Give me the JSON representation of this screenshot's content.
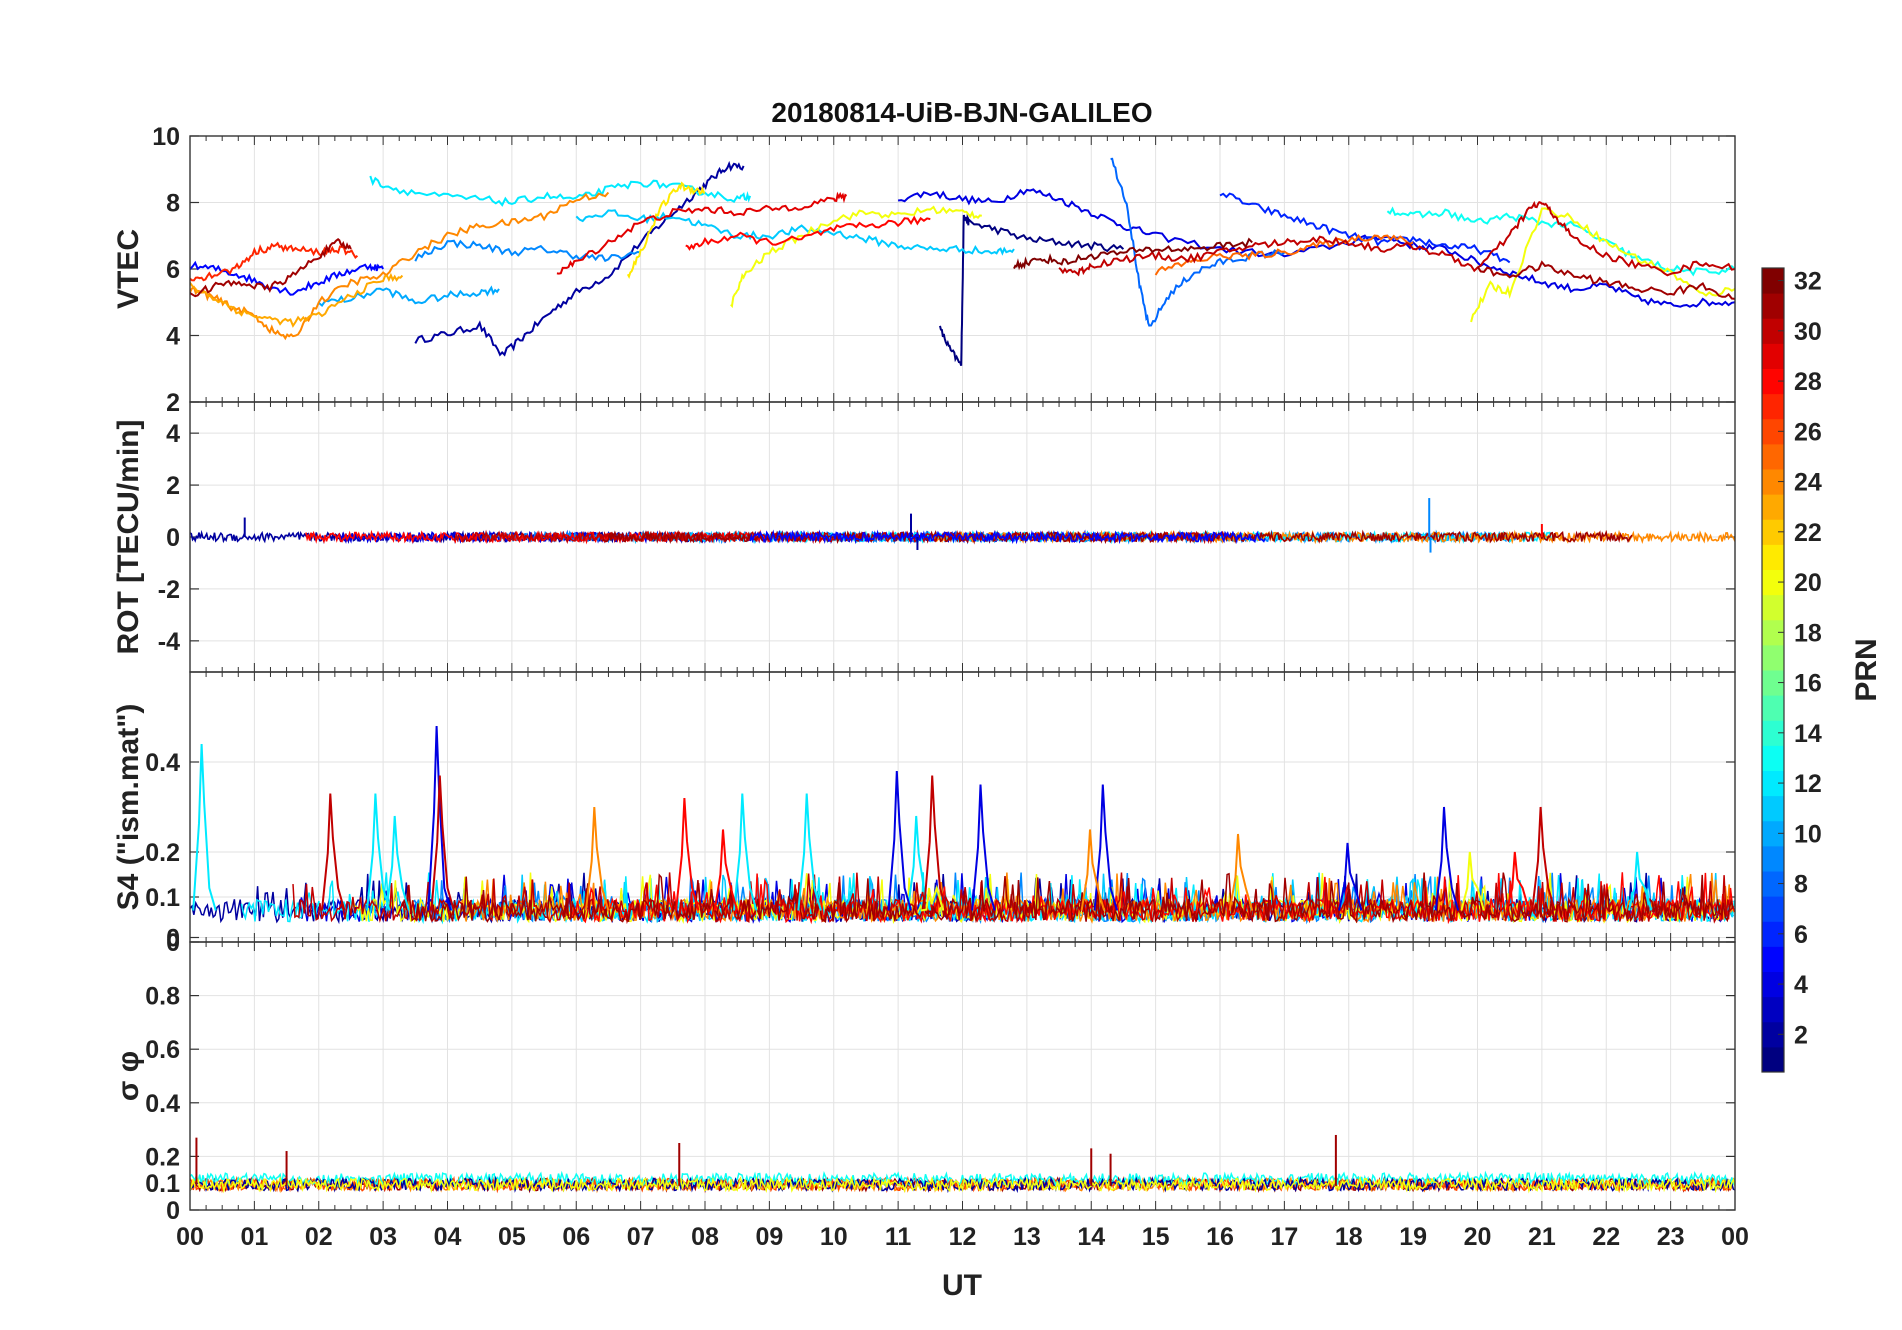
{
  "chart_data": {
    "type": "line",
    "title": "20180814-UiB-BJN-GALILEO",
    "xlabel": "UT",
    "x_tick_labels": [
      "00",
      "01",
      "02",
      "03",
      "04",
      "05",
      "06",
      "07",
      "08",
      "09",
      "10",
      "11",
      "12",
      "13",
      "14",
      "15",
      "16",
      "17",
      "18",
      "19",
      "20",
      "21",
      "22",
      "23",
      "00"
    ],
    "xlim": [
      0,
      24
    ],
    "grid": true,
    "colorbar": {
      "label": "PRN",
      "range": [
        1,
        32
      ],
      "ticks": [
        "2",
        "4",
        "6",
        "8",
        "10",
        "12",
        "14",
        "16",
        "18",
        "20",
        "22",
        "24",
        "26",
        "28",
        "30",
        "32"
      ],
      "colormap": "jet"
    },
    "panels": [
      {
        "ylabel": "VTEC",
        "ylim": [
          2,
          10
        ],
        "y_tick_labels": [
          "2",
          "4",
          "6",
          "8",
          "10"
        ],
        "series": [
          {
            "prn": 2,
            "x": [
              3.5,
              4.0,
              4.5,
              4.85,
              5.2,
              5.6,
              6.0,
              6.5,
              7.0,
              7.4,
              7.8,
              8.1,
              8.35,
              8.6
            ],
            "y": [
              3.85,
              4.05,
              4.3,
              3.4,
              4.0,
              4.7,
              5.3,
              5.8,
              6.8,
              7.5,
              8.2,
              8.7,
              9.1,
              9.1
            ]
          },
          {
            "prn": 1,
            "x": [
              11.65,
              11.8,
              11.98,
              12.02,
              12.05,
              12.1,
              12.5,
              13.0,
              13.5,
              14.0,
              14.5
            ],
            "y": [
              4.2,
              3.6,
              3.1,
              7.6,
              7.5,
              7.4,
              7.2,
              6.9,
              6.8,
              6.7,
              6.6
            ]
          },
          {
            "prn": 4,
            "x": [
              11.0,
              11.5,
              12.0,
              12.5,
              13.0,
              13.5,
              14.0,
              14.5,
              15.0,
              16.0,
              17.0,
              18.0,
              18.5,
              19.0,
              19.5,
              20.0,
              20.5,
              21.0,
              21.5,
              22.0,
              22.5,
              23.0,
              23.5,
              24.0
            ],
            "y": [
              8.1,
              8.3,
              8.1,
              8.0,
              8.4,
              8.1,
              7.7,
              7.3,
              7.0,
              6.6,
              6.4,
              6.8,
              7.0,
              6.7,
              6.6,
              6.2,
              5.9,
              5.6,
              5.4,
              5.5,
              5.1,
              4.9,
              5.0,
              5.0
            ]
          },
          {
            "prn": 8,
            "x": [
              14.3,
              14.55,
              14.75,
              14.9,
              15.2,
              15.6,
              16.0,
              16.5,
              17.0
            ],
            "y": [
              9.4,
              8.0,
              5.5,
              4.2,
              5.2,
              5.9,
              6.2,
              6.4,
              6.5
            ]
          },
          {
            "prn": 6,
            "x": [
              16.0,
              16.5,
              17.0,
              17.5,
              18.0,
              18.5,
              19.0,
              19.5,
              20.0,
              20.5
            ],
            "y": [
              8.3,
              7.9,
              7.6,
              7.3,
              7.0,
              6.8,
              6.9,
              6.7,
              6.6,
              6.2
            ]
          },
          {
            "prn": 5,
            "x": [
              0.0,
              0.4,
              0.8,
              1.2,
              1.6,
              2.0,
              2.4,
              2.8,
              3.0
            ],
            "y": [
              6.1,
              6.0,
              5.8,
              5.5,
              5.3,
              5.6,
              5.9,
              6.1,
              6.0
            ]
          },
          {
            "prn": 9,
            "x": [
              3.5,
              4.0,
              4.5,
              5.0,
              5.5,
              6.0,
              6.5,
              7.0
            ],
            "y": [
              6.3,
              6.8,
              6.7,
              6.5,
              6.6,
              6.4,
              6.3,
              6.5
            ]
          },
          {
            "prn": 10,
            "x": [
              2.0,
              2.5,
              3.0,
              3.5,
              4.0,
              4.5,
              4.8
            ],
            "y": [
              5.0,
              5.1,
              5.4,
              5.0,
              5.2,
              5.3,
              5.4
            ]
          },
          {
            "prn": 11,
            "x": [
              6.0,
              6.5,
              7.0,
              7.5,
              8.0,
              8.5,
              9.0,
              9.5,
              10.0,
              10.5,
              11.0,
              11.5,
              12.0,
              12.5,
              12.8
            ],
            "y": [
              7.5,
              7.7,
              7.5,
              7.6,
              7.3,
              7.0,
              7.0,
              7.2,
              7.1,
              6.9,
              6.7,
              6.6,
              6.6,
              6.5,
              6.6
            ]
          },
          {
            "prn": 12,
            "x": [
              2.8,
              3.2,
              3.8,
              4.5,
              5.0,
              5.5,
              6.0,
              6.5,
              7.0,
              7.5,
              8.0,
              8.5,
              8.7
            ],
            "y": [
              8.7,
              8.4,
              8.2,
              8.1,
              8.0,
              8.2,
              8.1,
              8.4,
              8.6,
              8.5,
              8.3,
              8.1,
              8.2
            ]
          },
          {
            "prn": 13,
            "x": [
              18.6,
              19.0,
              19.5,
              20.0,
              20.5,
              21.0,
              21.5,
              22.0,
              22.5,
              23.0,
              23.5,
              24.0
            ],
            "y": [
              7.8,
              7.6,
              7.7,
              7.4,
              7.6,
              7.4,
              7.3,
              6.8,
              6.3,
              6.0,
              5.9,
              6.0
            ]
          },
          {
            "prn": 20,
            "x": [
              8.4,
              8.6,
              9.0,
              9.5,
              10.0,
              10.5,
              11.0,
              11.5,
              12.0,
              12.3
            ],
            "y": [
              4.9,
              5.8,
              6.5,
              7.0,
              7.5,
              7.7,
              7.6,
              7.8,
              7.7,
              7.6
            ]
          },
          {
            "prn": 20,
            "x": [
              19.9,
              20.2,
              20.5,
              21.0,
              21.5,
              22.0,
              22.5,
              23.0,
              23.5,
              24.0
            ],
            "y": [
              4.5,
              5.5,
              5.3,
              7.8,
              7.5,
              6.8,
              6.3,
              5.9,
              5.2,
              5.4
            ]
          },
          {
            "prn": 21,
            "x": [
              6.8,
              7.0,
              7.3,
              7.6,
              7.8,
              8.0
            ],
            "y": [
              5.8,
              6.5,
              7.8,
              8.5,
              8.4,
              8.3
            ]
          },
          {
            "prn": 24,
            "x": [
              0.0,
              0.3,
              0.6,
              1.0,
              1.3,
              1.6,
              2.0,
              2.5,
              3.0,
              3.5,
              4.0,
              4.5,
              5.0,
              5.5,
              6.0,
              6.5
            ],
            "y": [
              5.4,
              5.2,
              4.9,
              4.6,
              4.1,
              3.9,
              5.0,
              5.6,
              5.8,
              6.5,
              7.0,
              7.3,
              7.4,
              7.6,
              8.1,
              8.3
            ]
          },
          {
            "prn": 25,
            "x": [
              15.0,
              15.5,
              16.0,
              16.5,
              17.0,
              17.5,
              18.0,
              18.5,
              19.0
            ],
            "y": [
              5.9,
              6.2,
              6.4,
              6.4,
              6.5,
              6.7,
              6.9,
              7.0,
              6.8
            ]
          },
          {
            "prn": 23,
            "x": [
              0.0,
              0.4,
              0.8,
              1.2,
              1.6,
              2.0,
              2.5,
              3.0,
              3.3
            ],
            "y": [
              5.5,
              5.1,
              4.7,
              4.5,
              4.4,
              4.6,
              5.2,
              5.7,
              5.8
            ]
          },
          {
            "prn": 28,
            "x": [
              7.7,
              8.0,
              8.5,
              9.0,
              9.5,
              10.0,
              10.5,
              11.0,
              11.5
            ],
            "y": [
              6.6,
              6.8,
              7.0,
              6.8,
              6.9,
              7.2,
              7.3,
              7.4,
              7.5
            ]
          },
          {
            "prn": 27,
            "x": [
              0.0,
              0.3,
              0.7,
              1.0,
              1.3,
              1.6,
              2.0,
              2.3,
              2.6
            ],
            "y": [
              5.7,
              5.8,
              6.0,
              6.5,
              6.7,
              6.6,
              6.5,
              6.6,
              6.4
            ]
          },
          {
            "prn": 29,
            "x": [
              5.7,
              6.0,
              6.5,
              7.0,
              7.5,
              8.0,
              8.5,
              9.0,
              9.5,
              10.0,
              10.2
            ],
            "y": [
              5.9,
              6.2,
              6.8,
              7.4,
              7.7,
              7.8,
              7.7,
              7.8,
              7.9,
              8.1,
              8.2
            ]
          },
          {
            "prn": 30,
            "x": [
              13.5,
              13.8,
              14.0,
              14.5,
              15.0,
              15.5,
              16.0,
              16.5,
              17.0,
              17.5,
              18.0,
              18.5,
              19.0,
              19.5,
              20.0,
              20.5,
              20.8,
              21.0,
              21.2,
              21.5,
              22.0,
              22.5,
              23.0,
              23.5,
              24.0
            ],
            "y": [
              6.0,
              5.9,
              6.1,
              6.3,
              6.4,
              6.3,
              6.5,
              6.7,
              6.8,
              6.9,
              6.8,
              6.6,
              6.7,
              6.4,
              6.0,
              7.0,
              7.8,
              8.0,
              7.6,
              6.9,
              6.4,
              6.1,
              5.9,
              6.2,
              6.0
            ]
          },
          {
            "prn": 31,
            "x": [
              0.0,
              0.4,
              0.8,
              1.2,
              1.6,
              2.0,
              2.3,
              2.5
            ],
            "y": [
              5.2,
              5.5,
              5.6,
              5.4,
              5.8,
              6.4,
              6.8,
              6.6
            ]
          },
          {
            "prn": 32,
            "x": [
              12.8,
              13.0,
              13.3,
              13.6,
              14.0,
              14.5,
              15.0,
              15.5,
              16.0,
              16.5
            ],
            "y": [
              6.1,
              6.2,
              6.3,
              6.2,
              6.4,
              6.5,
              6.6,
              6.6,
              6.7,
              6.8
            ]
          },
          {
            "prn": 31,
            "x": [
              20.0,
              20.5,
              21.0,
              21.5,
              22.0,
              22.5,
              23.0,
              23.5,
              24.0
            ],
            "y": [
              6.0,
              5.8,
              6.1,
              5.8,
              5.6,
              5.4,
              5.3,
              5.5,
              5.1
            ]
          }
        ]
      },
      {
        "ylabel": "ROT [TECU/min]",
        "ylim": [
          -5.2,
          5.2
        ],
        "y_tick_labels": [
          "-4",
          "-2",
          "0",
          "2",
          "4"
        ],
        "series_note": "noisy traces near 0",
        "series": [
          {
            "prn": 2,
            "spikes": [
              [
                0.85,
                0.75
              ],
              [
                11.2,
                0.9
              ],
              [
                11.3,
                -0.5
              ]
            ]
          },
          {
            "prn": 9,
            "spikes": [
              [
                19.25,
                1.5
              ],
              [
                19.27,
                -0.6
              ]
            ]
          },
          {
            "prn": 28,
            "spikes": [
              [
                21.0,
                0.5
              ]
            ]
          }
        ]
      },
      {
        "ylabel": "S4 (\"ism.mat\")",
        "ylim": [
          0,
          0.6
        ],
        "y_tick_labels": [
          "0",
          "0",
          "0.1",
          "0.2",
          "0.4"
        ],
        "series": [
          {
            "prn": 12,
            "peaks": [
              [
                0.2,
                0.44
              ],
              [
                2.9,
                0.33
              ],
              [
                3.2,
                0.28
              ],
              [
                8.6,
                0.33
              ],
              [
                9.6,
                0.33
              ],
              [
                11.3,
                0.28
              ],
              [
                22.5,
                0.2
              ]
            ]
          },
          {
            "prn": 4,
            "peaks": [
              [
                3.85,
                0.48
              ],
              [
                11.0,
                0.38
              ],
              [
                12.3,
                0.35
              ],
              [
                14.2,
                0.35
              ],
              [
                18.0,
                0.22
              ],
              [
                19.5,
                0.3
              ]
            ]
          },
          {
            "prn": 30,
            "peaks": [
              [
                2.2,
                0.33
              ],
              [
                3.9,
                0.37
              ],
              [
                11.55,
                0.37
              ],
              [
                21.0,
                0.3
              ]
            ]
          },
          {
            "prn": 24,
            "peaks": [
              [
                6.3,
                0.3
              ],
              [
                14.0,
                0.25
              ],
              [
                16.3,
                0.24
              ]
            ]
          },
          {
            "prn": 28,
            "peaks": [
              [
                7.7,
                0.32
              ],
              [
                8.3,
                0.25
              ],
              [
                20.6,
                0.2
              ]
            ]
          },
          {
            "prn": 20,
            "peaks": [
              [
                19.9,
                0.2
              ],
              [
                11.5,
                0.12
              ]
            ]
          }
        ]
      },
      {
        "ylabel": "σ φ",
        "ylim": [
          0,
          1.0
        ],
        "y_tick_labels": [
          "0",
          "0.1",
          "0.2",
          "0.4",
          "0.6",
          "0.8"
        ],
        "series": [
          {
            "prn": 31,
            "baseline": 0.1,
            "peaks": [
              [
                0.1,
                0.27
              ],
              [
                1.5,
                0.22
              ],
              [
                7.6,
                0.25
              ],
              [
                14.0,
                0.23
              ],
              [
                14.3,
                0.21
              ],
              [
                17.8,
                0.28
              ]
            ]
          },
          {
            "prn": 13,
            "baseline": 0.12,
            "range": [
              4.0,
              8.7
            ]
          },
          {
            "prn": 13,
            "baseline": 0.13,
            "range": [
              19.8,
              22.5
            ]
          }
        ]
      }
    ]
  }
}
